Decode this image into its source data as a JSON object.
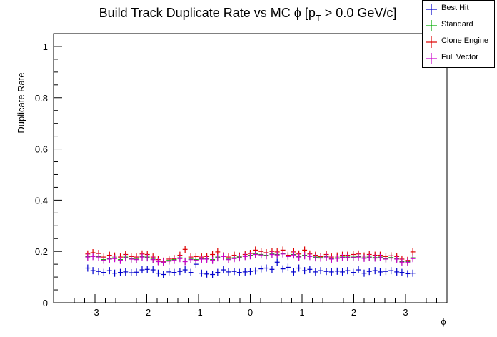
{
  "chart_data": {
    "type": "scatter",
    "title_main": "Build Track Duplicate Rate vs MC ",
    "title_phi": "ϕ",
    "title_bracket": " [p",
    "title_sub": "T",
    "title_rest": " > 0.0 GeV/c]",
    "xlabel": "ϕ",
    "ylabel": "Duplicate Rate",
    "xlim": [
      -3.8,
      3.8
    ],
    "ylim": [
      0,
      1.05
    ],
    "x_ticks": [
      -3,
      -2,
      -1,
      0,
      1,
      2,
      3
    ],
    "x_tick_labels": [
      "-3",
      "-2",
      "-1",
      "0",
      "1",
      "2",
      "3"
    ],
    "y_ticks": [
      0,
      0.2,
      0.4,
      0.6,
      0.8,
      1
    ],
    "y_tick_labels": [
      "0",
      "0.2",
      "0.4",
      "0.6",
      "0.8",
      "1"
    ],
    "x": [
      -3.14,
      -3.04,
      -2.93,
      -2.83,
      -2.72,
      -2.62,
      -2.51,
      -2.41,
      -2.3,
      -2.2,
      -2.09,
      -1.99,
      -1.88,
      -1.78,
      -1.68,
      -1.57,
      -1.47,
      -1.36,
      -1.26,
      -1.15,
      -1.05,
      -0.94,
      -0.84,
      -0.73,
      -0.63,
      -0.52,
      -0.42,
      -0.31,
      -0.21,
      -0.1,
      0.0,
      0.1,
      0.21,
      0.31,
      0.42,
      0.52,
      0.63,
      0.73,
      0.84,
      0.94,
      1.05,
      1.15,
      1.26,
      1.36,
      1.47,
      1.57,
      1.68,
      1.78,
      1.88,
      1.99,
      2.09,
      2.2,
      2.3,
      2.41,
      2.51,
      2.62,
      2.72,
      2.83,
      2.93,
      3.04,
      3.14
    ],
    "series": [
      {
        "name": "Best Hit",
        "color": "#0000cc",
        "values": [
          0.135,
          0.125,
          0.122,
          0.118,
          0.125,
          0.115,
          0.118,
          0.12,
          0.117,
          0.119,
          0.128,
          0.13,
          0.128,
          0.115,
          0.11,
          0.12,
          0.118,
          0.122,
          0.128,
          0.118,
          0.15,
          0.115,
          0.112,
          0.11,
          0.118,
          0.128,
          0.12,
          0.122,
          0.118,
          0.12,
          0.122,
          0.124,
          0.132,
          0.135,
          0.13,
          0.158,
          0.132,
          0.138,
          0.12,
          0.135,
          0.125,
          0.13,
          0.12,
          0.125,
          0.122,
          0.12,
          0.123,
          0.12,
          0.125,
          0.118,
          0.128,
          0.115,
          0.122,
          0.125,
          0.12,
          0.122,
          0.125,
          0.12,
          0.118,
          0.113,
          0.115
        ]
      },
      {
        "name": "Standard",
        "color": "#00aa00",
        "values": [
          0.18,
          0.182,
          0.18,
          0.168,
          0.172,
          0.175,
          0.168,
          0.178,
          0.172,
          0.17,
          0.18,
          0.178,
          0.17,
          0.162,
          0.158,
          0.165,
          0.168,
          0.175,
          0.162,
          0.17,
          0.168,
          0.172,
          0.172,
          0.168,
          0.178,
          0.182,
          0.17,
          0.175,
          0.178,
          0.182,
          0.185,
          0.19,
          0.188,
          0.185,
          0.19,
          0.188,
          0.192,
          0.182,
          0.188,
          0.18,
          0.185,
          0.182,
          0.178,
          0.176,
          0.18,
          0.172,
          0.175,
          0.178,
          0.178,
          0.178,
          0.18,
          0.175,
          0.178,
          0.176,
          0.178,
          0.172,
          0.176,
          0.172,
          0.16,
          0.16,
          0.175
        ]
      },
      {
        "name": "Clone Engine",
        "color": "#dd0000",
        "values": [
          0.19,
          0.195,
          0.192,
          0.178,
          0.185,
          0.182,
          0.178,
          0.188,
          0.18,
          0.178,
          0.19,
          0.188,
          0.178,
          0.168,
          0.162,
          0.17,
          0.172,
          0.185,
          0.208,
          0.178,
          0.18,
          0.178,
          0.18,
          0.188,
          0.198,
          0.182,
          0.178,
          0.185,
          0.182,
          0.188,
          0.192,
          0.205,
          0.2,
          0.195,
          0.2,
          0.198,
          0.205,
          0.185,
          0.198,
          0.19,
          0.205,
          0.19,
          0.185,
          0.18,
          0.188,
          0.178,
          0.182,
          0.185,
          0.185,
          0.188,
          0.19,
          0.182,
          0.188,
          0.185,
          0.185,
          0.18,
          0.183,
          0.18,
          0.17,
          0.165,
          0.198
        ]
      },
      {
        "name": "Full Vector",
        "color": "#cc00cc",
        "values": [
          0.178,
          0.18,
          0.178,
          0.165,
          0.17,
          0.172,
          0.165,
          0.175,
          0.17,
          0.168,
          0.178,
          0.175,
          0.168,
          0.16,
          0.158,
          0.162,
          0.165,
          0.172,
          0.16,
          0.168,
          0.165,
          0.17,
          0.17,
          0.165,
          0.175,
          0.18,
          0.168,
          0.172,
          0.175,
          0.18,
          0.183,
          0.188,
          0.186,
          0.183,
          0.188,
          0.186,
          0.19,
          0.18,
          0.186,
          0.178,
          0.183,
          0.18,
          0.175,
          0.174,
          0.178,
          0.17,
          0.173,
          0.176,
          0.176,
          0.176,
          0.178,
          0.173,
          0.176,
          0.174,
          0.176,
          0.17,
          0.174,
          0.17,
          0.158,
          0.158,
          0.172
        ]
      }
    ],
    "legend_position": "top-right",
    "grid": false
  }
}
